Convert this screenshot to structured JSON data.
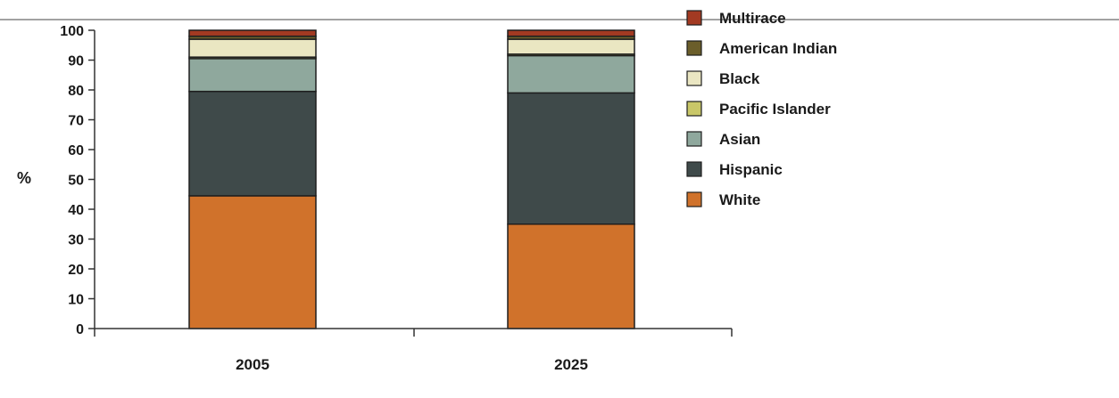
{
  "chart_data": {
    "type": "bar",
    "stacked": true,
    "categories": [
      "2005",
      "2025"
    ],
    "ylabel": "%",
    "ylim": [
      0,
      100
    ],
    "yticks": [
      0,
      10,
      20,
      30,
      40,
      50,
      60,
      70,
      80,
      90,
      100
    ],
    "grid": false,
    "legend_position": "right",
    "series": [
      {
        "name": "White",
        "color": "#d0722b",
        "values": [
          44.5,
          35.0
        ]
      },
      {
        "name": "Hispanic",
        "color": "#3f4a4a",
        "values": [
          35.0,
          44.0
        ]
      },
      {
        "name": "Asian",
        "color": "#8fa89d",
        "values": [
          11.0,
          12.5
        ]
      },
      {
        "name": "Pacific Islander",
        "color": "#c9c768",
        "values": [
          0.5,
          0.5
        ]
      },
      {
        "name": "Black",
        "color": "#eae6c2",
        "values": [
          6.0,
          5.0
        ]
      },
      {
        "name": "American Indian",
        "color": "#6b5e2a",
        "values": [
          1.0,
          1.0
        ]
      },
      {
        "name": "Multirace",
        "color": "#a33a22",
        "values": [
          2.0,
          2.0
        ]
      }
    ],
    "legend_order": [
      "Multirace",
      "American Indian",
      "Black",
      "Pacific Islander",
      "Asian",
      "Hispanic",
      "White"
    ]
  }
}
